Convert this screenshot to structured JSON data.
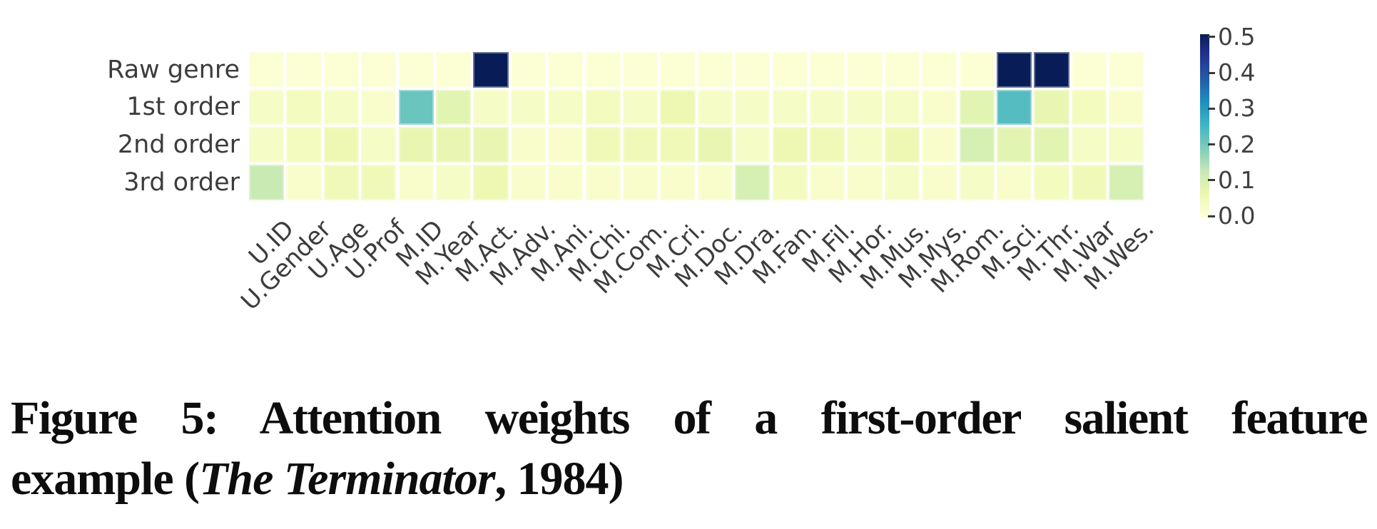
{
  "figure": {
    "caption": {
      "line1": "Figure 5: Attention weights of a first-order salient feature",
      "line2_prefix": "example (",
      "line2_italic": "The Terminator",
      "line2_suffix": ", 1984)"
    }
  },
  "chart_data": {
    "type": "heatmap",
    "title": "",
    "xlabel": "",
    "ylabel": "",
    "x_categories": [
      "U.ID",
      "U.Gender",
      "U.Age",
      "U.Prof",
      "M.ID",
      "M.Year",
      "M.Act.",
      "M.Adv.",
      "M.Ani.",
      "M.Chi.",
      "M.Com.",
      "M.Cri.",
      "M.Doc.",
      "M.Dra.",
      "M.Fan.",
      "M.Fil.",
      "M.Hor.",
      "M.Mus.",
      "M.Mys.",
      "M.Rom.",
      "M.Sci.",
      "M.Thr.",
      "M.War",
      "M.Wes."
    ],
    "y_categories": [
      "Raw genre",
      "1st order",
      "2nd order",
      "3rd order"
    ],
    "series": [
      {
        "name": "Raw genre",
        "values": [
          0.01,
          0.01,
          0.01,
          0.01,
          0.01,
          0.01,
          0.5,
          0.01,
          0.01,
          0.01,
          0.01,
          0.01,
          0.01,
          0.01,
          0.01,
          0.01,
          0.01,
          0.01,
          0.01,
          0.01,
          0.5,
          0.5,
          0.01,
          0.01
        ]
      },
      {
        "name": "1st order",
        "values": [
          0.03,
          0.04,
          0.03,
          0.02,
          0.21,
          0.08,
          0.03,
          0.03,
          0.03,
          0.04,
          0.03,
          0.06,
          0.03,
          0.03,
          0.03,
          0.03,
          0.03,
          0.03,
          0.02,
          0.08,
          0.23,
          0.07,
          0.04,
          0.02
        ]
      },
      {
        "name": "2nd order",
        "values": [
          0.03,
          0.04,
          0.06,
          0.03,
          0.07,
          0.07,
          0.07,
          0.02,
          0.02,
          0.05,
          0.05,
          0.05,
          0.07,
          0.03,
          0.06,
          0.05,
          0.03,
          0.06,
          0.02,
          0.1,
          0.08,
          0.08,
          0.03,
          0.03
        ]
      },
      {
        "name": "3rd order",
        "values": [
          0.12,
          0.02,
          0.05,
          0.05,
          0.02,
          0.03,
          0.06,
          0.02,
          0.02,
          0.02,
          0.02,
          0.02,
          0.02,
          0.1,
          0.04,
          0.02,
          0.02,
          0.03,
          0.02,
          0.03,
          0.02,
          0.04,
          0.05,
          0.1
        ]
      }
    ],
    "colorbar": {
      "min": 0.0,
      "max": 0.5,
      "ticks": [
        "0.5",
        "0.4",
        "0.3",
        "0.2",
        "0.1",
        "0.0"
      ],
      "colormap": "YlGnBu",
      "position": "right"
    },
    "colormap_stops": [
      "#ffffd9",
      "#edf8b1",
      "#c7e9b4",
      "#7fcdbb",
      "#41b6c4",
      "#1d91c0",
      "#225ea8",
      "#253494",
      "#081d58"
    ],
    "layout": {
      "grid": false,
      "cell_gap_color": "#ffffff",
      "x_tick_rotation_deg": 45
    }
  }
}
